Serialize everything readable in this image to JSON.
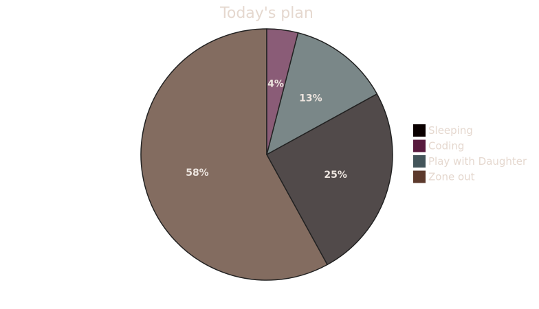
{
  "chart_data": {
    "type": "pie",
    "title": "Today's plan",
    "start_angle_deg": 0,
    "direction": "counterclockwise",
    "legend_position": "right",
    "legend": [
      {
        "name": "Sleeping",
        "color": "#0a0000"
      },
      {
        "name": "Coding",
        "color": "#581a3e"
      },
      {
        "name": "Play with Daughter",
        "color": "#43555a"
      },
      {
        "name": "Zone out",
        "color": "#5c392c"
      }
    ],
    "slices": [
      {
        "value": 58,
        "label": "58%",
        "color": "#836c60"
      },
      {
        "value": 25,
        "label": "25%",
        "color": "#514a4a"
      },
      {
        "value": 13,
        "label": "13%",
        "color": "#7a8788"
      },
      {
        "value": 4,
        "label": "4%",
        "color": "#8a5c77"
      }
    ],
    "colors": {
      "title": "#e5d8cf",
      "legend_text": "#e5d8cf",
      "slice_label": "#ece4de",
      "slice_border": "#222222"
    }
  }
}
